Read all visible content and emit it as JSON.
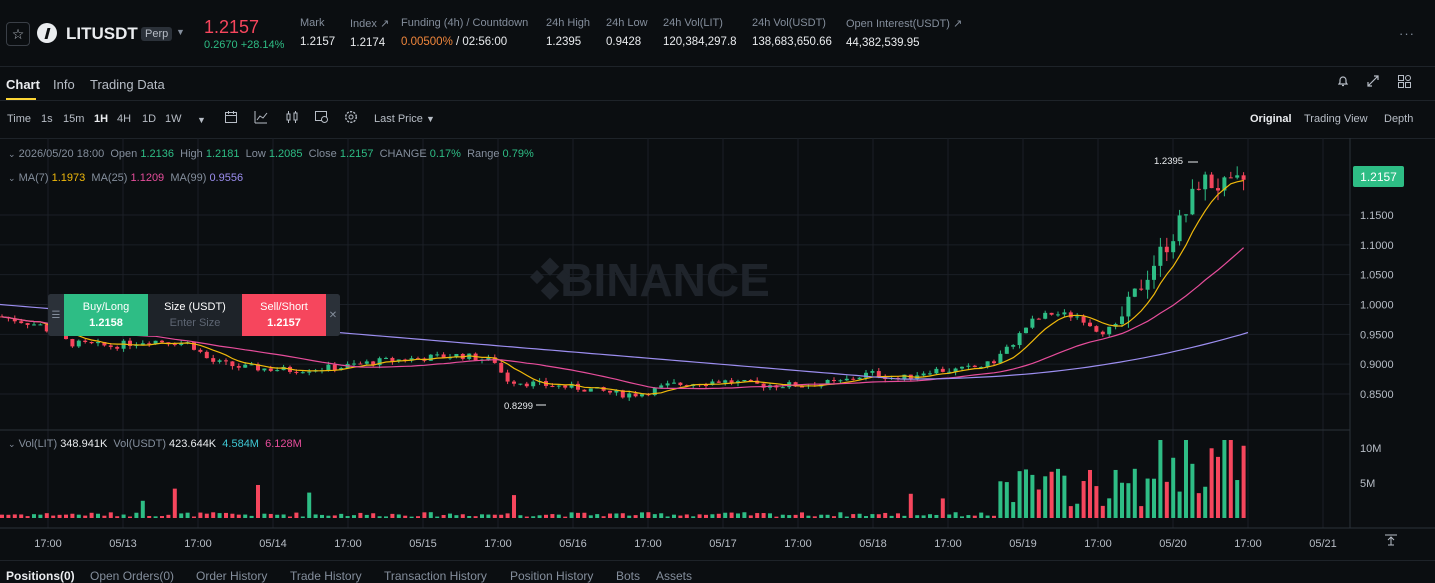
{
  "header": {
    "symbol": "LITUSDT",
    "contract_type": "Perp",
    "last_price": "1.2157",
    "change": "0.2670 +28.14%",
    "stats": [
      {
        "label": "Mark",
        "value": "1.2157"
      },
      {
        "label": "Index ↗",
        "value": "1.2174"
      },
      {
        "label": "Funding (4h) / Countdown",
        "value": "0.00500%",
        "value2": " / 02:56:00"
      },
      {
        "label": "24h High",
        "value": "1.2395"
      },
      {
        "label": "24h Low",
        "value": "0.9428"
      },
      {
        "label": "24h Vol(LIT)",
        "value": "120,384,297.8"
      },
      {
        "label": "24h Vol(USDT)",
        "value": "138,683,650.66"
      },
      {
        "label": "Open Interest(USDT) ↗",
        "value": "44,382,539.95"
      }
    ]
  },
  "tabs": [
    "Chart",
    "Info",
    "Trading Data"
  ],
  "toolbar": {
    "intervals": [
      "Time",
      "1s",
      "15m",
      "1H",
      "4H",
      "1D",
      "1W"
    ],
    "active_interval": "1H",
    "price_type": "Last Price",
    "views": [
      "Original",
      "Trading View",
      "Depth"
    ],
    "active_view": "Original"
  },
  "legend": {
    "datetime": "2026/05/20 18:00",
    "open_label": "Open",
    "open": "1.2136",
    "high_label": "High",
    "high": "1.2181",
    "low_label": "Low",
    "low": "1.2085",
    "close_label": "Close",
    "close": "1.2157",
    "change_label": "CHANGE",
    "change": "0.17%",
    "range_label": "Range",
    "range": "0.79%",
    "ma7_label": "MA(7)",
    "ma7": "1.1973",
    "ma25_label": "MA(25)",
    "ma25": "1.1209",
    "ma99_label": "MA(99)",
    "ma99": "0.9556",
    "vol_lit_label": "Vol(LIT)",
    "vol_lit": "348.941K",
    "vol_usdt_label": "Vol(USDT)",
    "vol_usdt": "423.644K",
    "vol_ma1": "4.584M",
    "vol_ma2": "6.128M"
  },
  "trade_widget": {
    "buy_label": "Buy/Long",
    "buy_price": "1.2158",
    "size_label": "Size (USDT)",
    "size_placeholder": "Enter Size",
    "sell_label": "Sell/Short",
    "sell_price": "1.2157"
  },
  "watermark": "BINANCE",
  "chart_data": {
    "type": "candlestick",
    "interval": "1H",
    "price_axis": [
      "1.1500",
      "1.1000",
      "1.0500",
      "1.0000",
      "0.9500",
      "0.9000",
      "0.8500"
    ],
    "current_price": "1.2157",
    "high_marker": "1.2395",
    "low_marker": "0.8299",
    "time_axis": [
      "17:00",
      "05/13",
      "17:00",
      "05/14",
      "17:00",
      "05/15",
      "17:00",
      "05/16",
      "17:00",
      "05/17",
      "17:00",
      "05/18",
      "17:00",
      "05/19",
      "17:00",
      "05/20",
      "17:00",
      "05/21"
    ],
    "volume_axis": [
      "10M",
      "5M"
    ],
    "colors": {
      "up": "#2ebd85",
      "down": "#f6465d",
      "ma7": "#f0b90b",
      "ma25": "#e64d9b",
      "ma99": "#9c8ef0"
    }
  },
  "bottom_tabs": [
    "Positions(0)",
    "Open Orders(0)",
    "Order History",
    "Trade History",
    "Transaction History",
    "Position History",
    "Bots",
    "Assets"
  ]
}
